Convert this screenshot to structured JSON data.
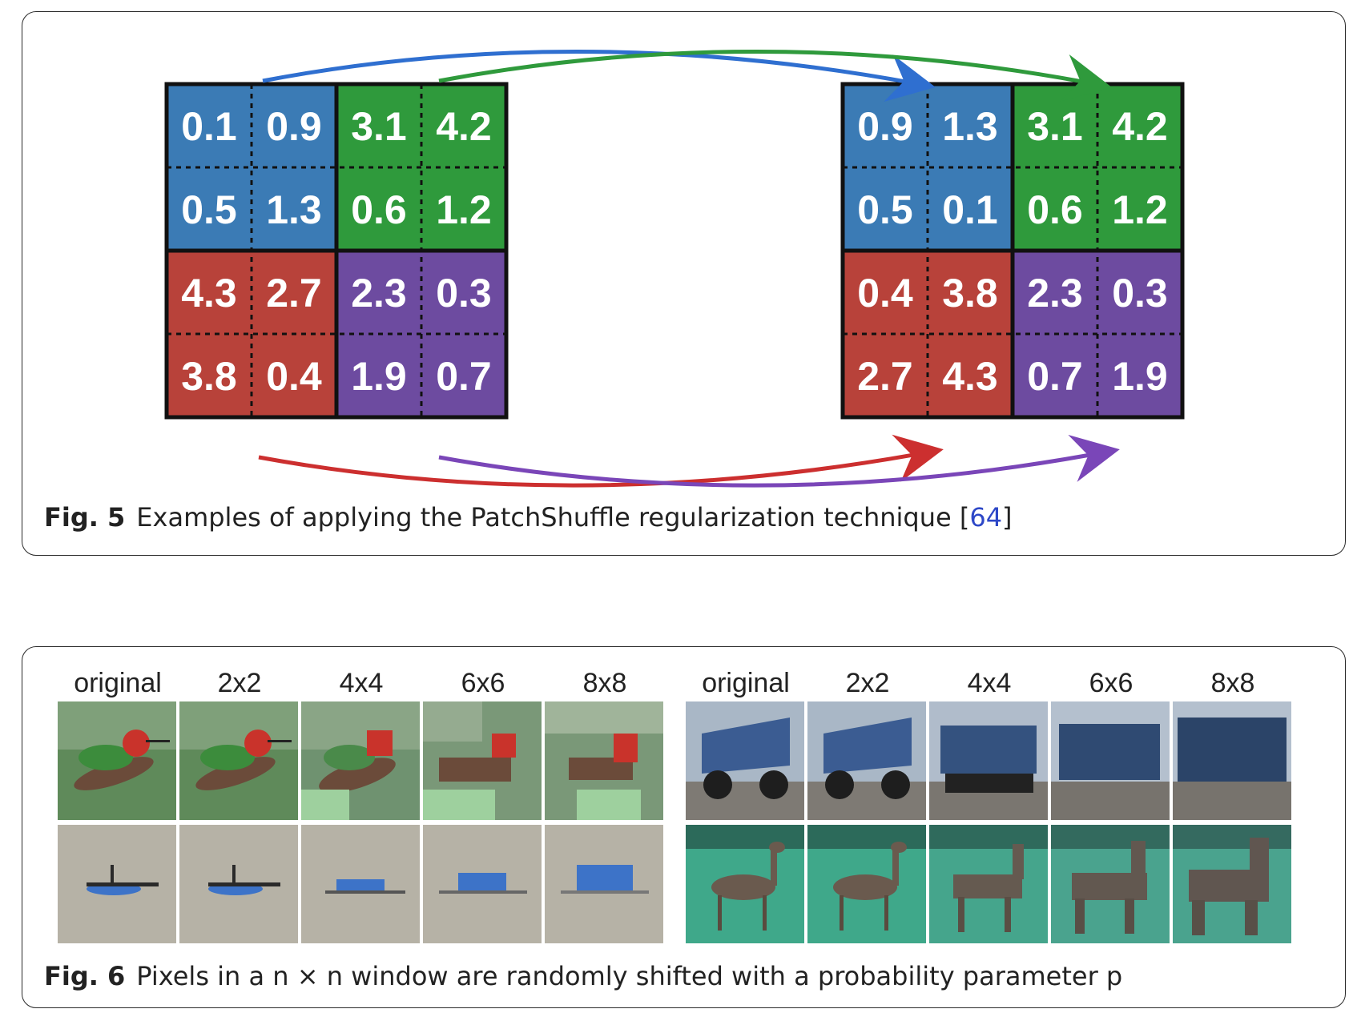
{
  "fig5": {
    "caption_label": "Fig. 5",
    "caption_text": "Examples of applying the PatchShuffle regularization technique [",
    "caption_ref": "64",
    "caption_end": "]",
    "colors": {
      "blue": "#3b7bb5",
      "green": "#2f9a3c",
      "red": "#b8423a",
      "purple": "#6d4ba0"
    },
    "left_grid": [
      [
        "0.1",
        "0.9",
        "3.1",
        "4.2"
      ],
      [
        "0.5",
        "1.3",
        "0.6",
        "1.2"
      ],
      [
        "4.3",
        "2.7",
        "2.3",
        "0.3"
      ],
      [
        "3.8",
        "0.4",
        "1.9",
        "0.7"
      ]
    ],
    "right_grid": [
      [
        "0.9",
        "1.3",
        "3.1",
        "4.2"
      ],
      [
        "0.5",
        "0.1",
        "0.6",
        "1.2"
      ],
      [
        "0.4",
        "3.8",
        "2.3",
        "0.3"
      ],
      [
        "2.7",
        "4.3",
        "0.7",
        "1.9"
      ]
    ]
  },
  "fig6": {
    "caption_label": "Fig. 6",
    "caption_text": "Pixels in a n × n window are randomly shifted with a probability parameter p",
    "labels_left": [
      "original",
      "2x2",
      "4x4",
      "6x6",
      "8x8"
    ],
    "labels_right": [
      "original",
      "2x2",
      "4x4",
      "6x6",
      "8x8"
    ]
  }
}
